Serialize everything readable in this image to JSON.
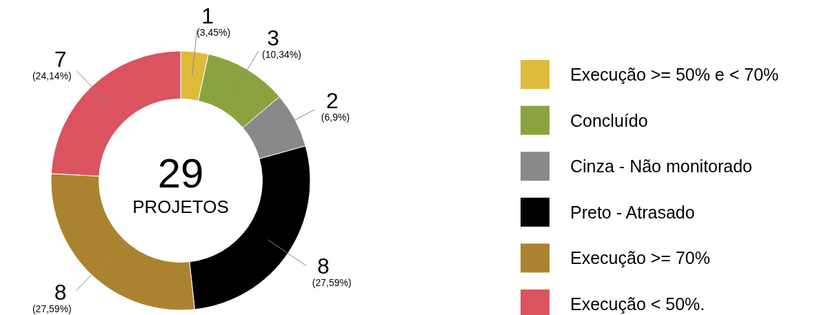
{
  "chart_data": {
    "type": "donut",
    "categories": [
      "Execução >= 50% e < 70%",
      "Concluído",
      "Cinza - Não monitorado",
      "Preto - Atrasado",
      "Execução >= 70%",
      "Execução < 50%."
    ],
    "values": [
      1,
      3,
      2,
      8,
      8,
      7
    ],
    "colors": [
      "#dfbb3b",
      "#8ba33f",
      "#898989",
      "#000000",
      "#ab8330",
      "#db535f"
    ],
    "value_labels": [
      "1 (3,45%)",
      "3 (10,34%)",
      "2 (6,9%)",
      "8 (27,59%)",
      "8 (27,59%)",
      "7 (24,14%)"
    ],
    "annotations": [
      "29",
      "PROJETOS"
    ],
    "legend": "right"
  }
}
